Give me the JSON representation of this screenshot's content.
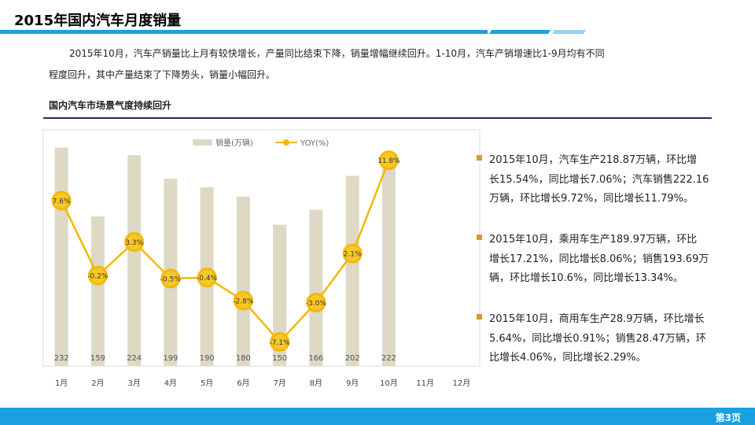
{
  "header": {
    "title": "2015年国内汽车月度销量",
    "page": "第3页"
  },
  "intro": [
    "2015年10月，汽车产销量比上月有较快增长，产量同比结束下降，销量增幅继续回升。1-10月，汽车产销增速比1-9月均有不同",
    "程度回升，其中产量结束了下降势头，销量小幅回升。"
  ],
  "section_title": "国内汽车市场景气度持续回升",
  "bullets": [
    [
      "2015年10月，汽车生产218.87万辆，环比增",
      "长15.54%，同比增长7.06%；汽车销售222.16",
      "万辆，环比增长9.72%，同比增长11.79%。"
    ],
    [
      "2015年10月，乘用车生产189.97万辆，环比",
      "增长17.21%，同比增长8.06%；销售193.69万",
      "辆，环比增长10.6%，同比增长13.34%。"
    ],
    [
      "2015年10月，商用车生产28.9万辆，环比增长",
      "5.64%，同比增长0.91%；销售28.47万辆，环",
      "比增长4.06%，同比增长2.29%。"
    ]
  ],
  "chart_data": {
    "type": "bar-line",
    "categories": [
      "1月",
      "2月",
      "3月",
      "4月",
      "5月",
      "6月",
      "7月",
      "8月",
      "9月",
      "10月",
      "11月",
      "12月"
    ],
    "series": [
      {
        "name": "销量(万辆)",
        "color": "#ddd9c4",
        "values": [
          232,
          159,
          224,
          199,
          190,
          180,
          150,
          166,
          202,
          222,
          null,
          null
        ]
      },
      {
        "name": "YOY(%)",
        "color": "#f5b800",
        "axis": "y2",
        "values": [
          7.6,
          -0.2,
          3.3,
          -0.5,
          -0.4,
          -2.8,
          -7.1,
          -3.0,
          2.1,
          11.8,
          null,
          null
        ],
        "value_labels": [
          "7.6%",
          "-0.2%",
          "3.3%",
          "-0.5%",
          "-0.4%",
          "-2.8%",
          "-7.1%",
          "-3.0%",
          "2.1%",
          "11.8%",
          null,
          null
        ]
      }
    ],
    "ylim": [
      0,
      240
    ],
    "y2lim": [
      -9.6,
      13.9
    ]
  }
}
